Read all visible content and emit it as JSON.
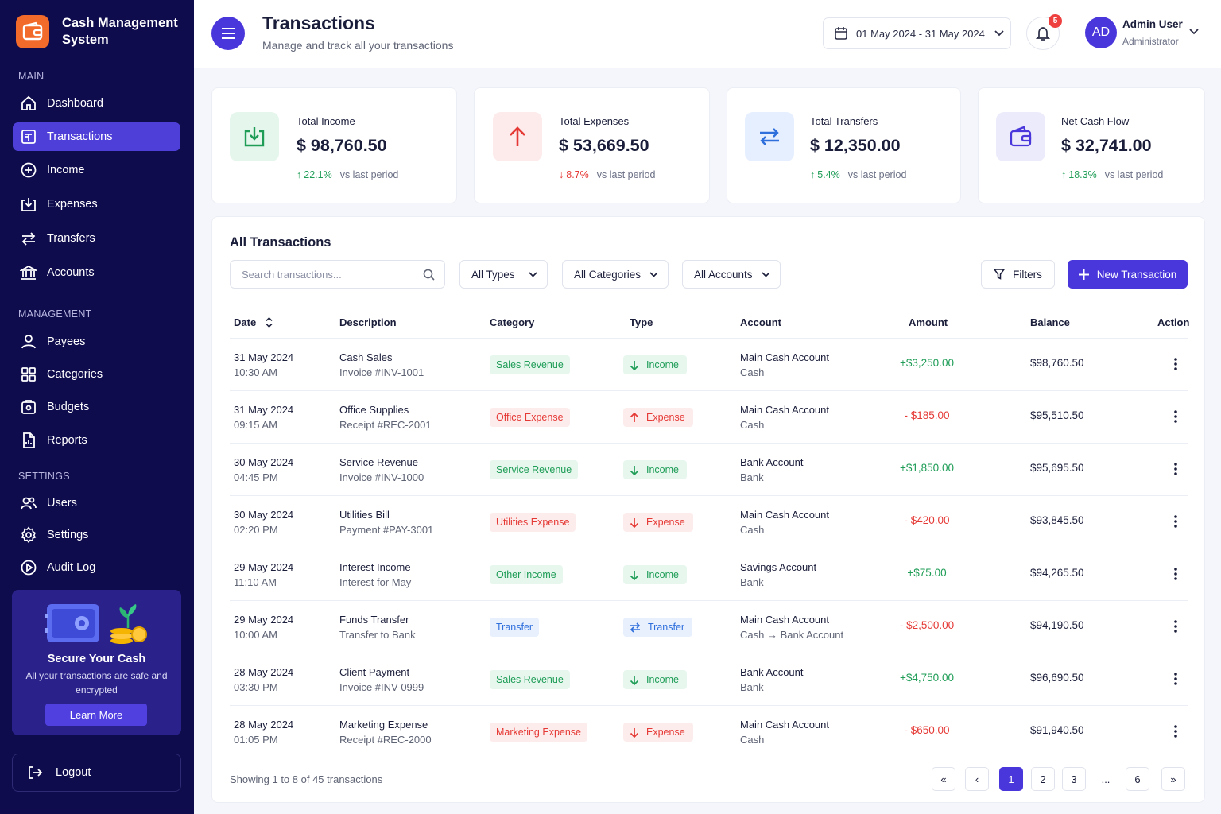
{
  "app": {
    "name": "Cash Management System"
  },
  "sidebar": {
    "sections": {
      "main": "MAIN",
      "management": "MANAGEMENT",
      "settings": "SETTINGS"
    },
    "items": [
      {
        "label": "Dashboard",
        "icon": "home-icon"
      },
      {
        "label": "Transactions",
        "icon": "transactions-icon",
        "active": true
      },
      {
        "label": "Income",
        "icon": "plus-circle-icon"
      },
      {
        "label": "Expenses",
        "icon": "expenses-icon"
      },
      {
        "label": "Transfers",
        "icon": "transfer-icon"
      },
      {
        "label": "Accounts",
        "icon": "bank-icon"
      },
      {
        "label": "Payees",
        "icon": "user-icon"
      },
      {
        "label": "Categories",
        "icon": "grid-icon"
      },
      {
        "label": "Budgets",
        "icon": "budget-icon"
      },
      {
        "label": "Reports",
        "icon": "report-icon"
      },
      {
        "label": "Users",
        "icon": "users-icon"
      },
      {
        "label": "Settings",
        "icon": "gear-icon"
      },
      {
        "label": "Audit Log",
        "icon": "audit-icon"
      }
    ],
    "promo": {
      "title": "Secure Your Cash",
      "text": "All your transactions are safe and encrypted",
      "button": "Learn More"
    },
    "logout": "Logout"
  },
  "header": {
    "title": "Transactions",
    "subtitle": "Manage and track all your transactions",
    "date_range": "01 May 2024 - 31 May 2024",
    "notifications": "5",
    "user": {
      "initials": "AD",
      "name": "Admin User",
      "role": "Administrator"
    }
  },
  "cards": [
    {
      "label": "Total Income",
      "value": "$ 98,760.50",
      "change": "22.1%",
      "direction": "up",
      "vs": "vs last period"
    },
    {
      "label": "Total Expenses",
      "value": "$ 53,669.50",
      "change": "8.7%",
      "direction": "down",
      "vs": "vs last period"
    },
    {
      "label": "Total Transfers",
      "value": "$ 12,350.00",
      "change": "5.4%",
      "direction": "up",
      "vs": "vs last period"
    },
    {
      "label": "Net Cash Flow",
      "value": "$ 32,741.00",
      "change": "18.3%",
      "direction": "up",
      "vs": "vs last period"
    }
  ],
  "panel": {
    "title": "All Transactions",
    "search_placeholder": "Search transactions...",
    "filters": {
      "types": "All Types",
      "categories": "All Categories",
      "accounts": "All Accounts"
    },
    "filters_button": "Filters",
    "new_button": "New Transaction",
    "columns": [
      "Date",
      "Description",
      "Category",
      "Type",
      "Account",
      "Amount",
      "Balance",
      "Action"
    ],
    "rows": [
      {
        "date": "31 May 2024",
        "time": "10:30 AM",
        "desc": "Cash Sales",
        "ref": "Invoice #INV-1001",
        "category": "Sales Revenue",
        "cat_color": "green",
        "type": "Income",
        "account": "Main Cash Account",
        "account_type": "Cash",
        "amount": "+$3,250.00",
        "balance": "$98,760.50"
      },
      {
        "date": "31 May 2024",
        "time": "09:15 AM",
        "desc": "Office Supplies",
        "ref": "Receipt #REC-2001",
        "category": "Office Expense",
        "cat_color": "red",
        "type": "Expense",
        "account": "Main Cash Account",
        "account_type": "Cash",
        "amount": "- $185.00",
        "balance": "$95,510.50"
      },
      {
        "date": "30 May 2024",
        "time": "04:45 PM",
        "desc": "Service Revenue",
        "ref": "Invoice #INV-1000",
        "category": "Service Revenue",
        "cat_color": "green",
        "type": "Income",
        "account": "Bank Account",
        "account_type": "Bank",
        "amount": "+$1,850.00",
        "balance": "$95,695.50"
      },
      {
        "date": "30 May 2024",
        "time": "02:20 PM",
        "desc": "Utilities Bill",
        "ref": "Payment #PAY-3001",
        "category": "Utilities Expense",
        "cat_color": "red",
        "type": "Expense",
        "account": "Main Cash Account",
        "account_type": "Cash",
        "amount": "- $420.00",
        "balance": "$93,845.50"
      },
      {
        "date": "29 May 2024",
        "time": "11:10 AM",
        "desc": "Interest Income",
        "ref": "Interest for May",
        "category": "Other Income",
        "cat_color": "green",
        "type": "Income",
        "account": "Savings Account",
        "account_type": "Bank",
        "amount": "+$75.00",
        "balance": "$94,265.50"
      },
      {
        "date": "29 May 2024",
        "time": "10:00 AM",
        "desc": "Funds Transfer",
        "ref": "Transfer to Bank",
        "category": "Transfer",
        "cat_color": "blue",
        "type": "Transfer",
        "account": "Main Cash Account",
        "account_type": "Cash",
        "account_to": "Bank Account",
        "amount": "- $2,500.00",
        "balance": "$94,190.50"
      },
      {
        "date": "28 May 2024",
        "time": "03:30 PM",
        "desc": "Client Payment",
        "ref": "Invoice #INV-0999",
        "category": "Sales Revenue",
        "cat_color": "green",
        "type": "Income",
        "account": "Bank Account",
        "account_type": "Bank",
        "amount": "+$4,750.00",
        "balance": "$96,690.50"
      },
      {
        "date": "28 May 2024",
        "time": "01:05 PM",
        "desc": "Marketing Expense",
        "ref": "Receipt #REC-2000",
        "category": "Marketing Expense",
        "cat_color": "red",
        "type": "Expense",
        "account": "Main Cash Account",
        "account_type": "Cash",
        "amount": "- $650.00",
        "balance": "$91,940.50"
      }
    ],
    "footer": "Showing 1 to 8 of 45 transactions",
    "pagination": [
      "1",
      "2",
      "3",
      "...",
      "6"
    ]
  },
  "colors": {
    "sidebar": "#0f0c4e",
    "accent": "#4a37db",
    "income": "#1f9d57",
    "expense": "#e53935",
    "transfer": "#2f6fdc",
    "brand": "#f26b2a"
  }
}
